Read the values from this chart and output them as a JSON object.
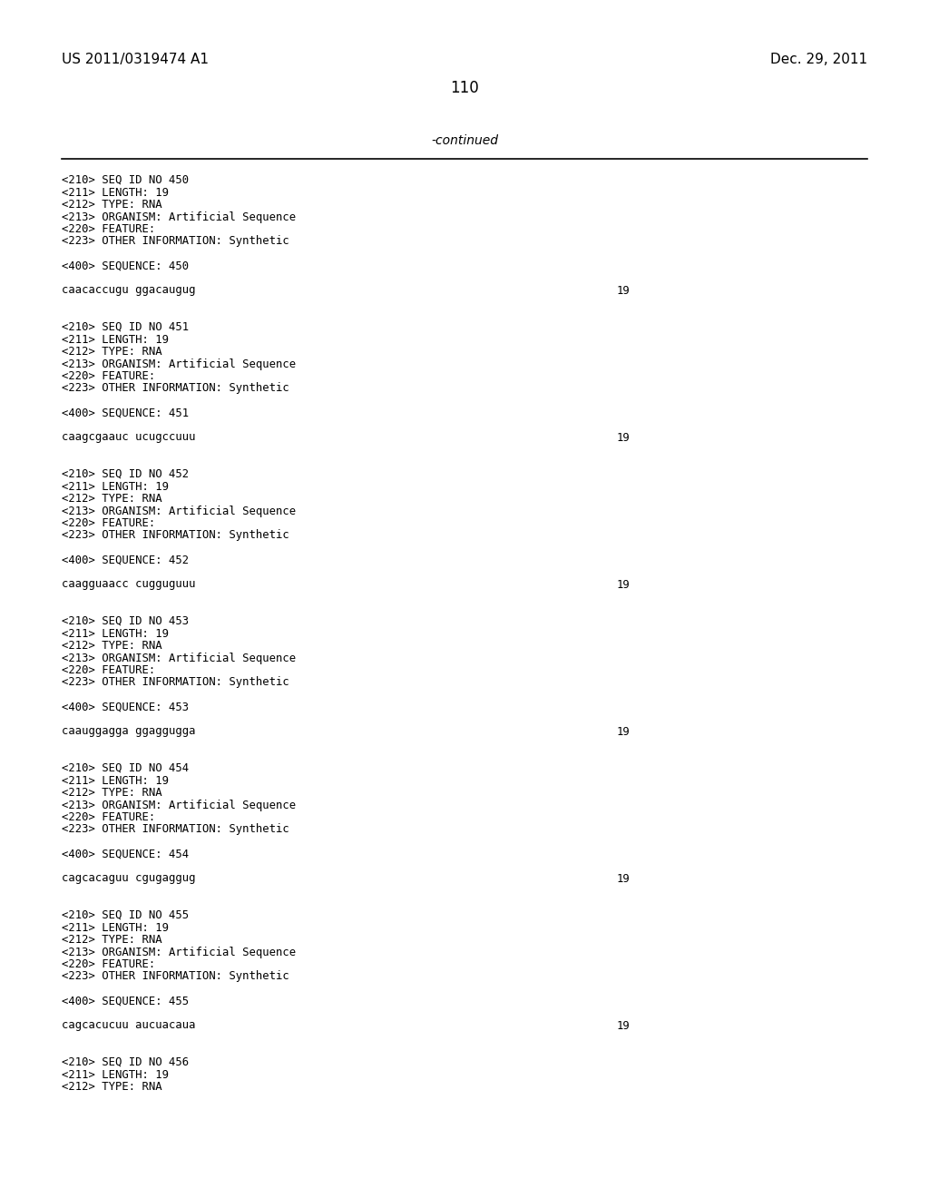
{
  "bg_color": "#ffffff",
  "header_left": "US 2011/0319474 A1",
  "header_right": "Dec. 29, 2011",
  "page_number": "110",
  "continued_label": "-continued",
  "font_size_header": 11,
  "font_size_mono": 8.8,
  "font_size_page": 12,
  "font_size_continued": 10,
  "entries": [
    {
      "seq_id": "450",
      "length": "19",
      "type": "RNA",
      "organism": "Artificial Sequence",
      "other_info": "Synthetic",
      "sequence": "caacaccugu ggacaugug",
      "seq_length_val": "19",
      "complete": true
    },
    {
      "seq_id": "451",
      "length": "19",
      "type": "RNA",
      "organism": "Artificial Sequence",
      "other_info": "Synthetic",
      "sequence": "caagcgaauc ucugccuuu",
      "seq_length_val": "19",
      "complete": true
    },
    {
      "seq_id": "452",
      "length": "19",
      "type": "RNA",
      "organism": "Artificial Sequence",
      "other_info": "Synthetic",
      "sequence": "caagguaacc cugguguuu",
      "seq_length_val": "19",
      "complete": true
    },
    {
      "seq_id": "453",
      "length": "19",
      "type": "RNA",
      "organism": "Artificial Sequence",
      "other_info": "Synthetic",
      "sequence": "caauggagga ggaggugga",
      "seq_length_val": "19",
      "complete": true
    },
    {
      "seq_id": "454",
      "length": "19",
      "type": "RNA",
      "organism": "Artificial Sequence",
      "other_info": "Synthetic",
      "sequence": "cagcacaguu cgugaggug",
      "seq_length_val": "19",
      "complete": true
    },
    {
      "seq_id": "455",
      "length": "19",
      "type": "RNA",
      "organism": "Artificial Sequence",
      "other_info": "Synthetic",
      "sequence": "cagcacucuu aucuacaua",
      "seq_length_val": "19",
      "complete": true
    },
    {
      "seq_id": "456",
      "length": "19",
      "type": "RNA",
      "organism": "",
      "other_info": "",
      "sequence": "",
      "seq_length_val": "",
      "complete": false
    }
  ]
}
